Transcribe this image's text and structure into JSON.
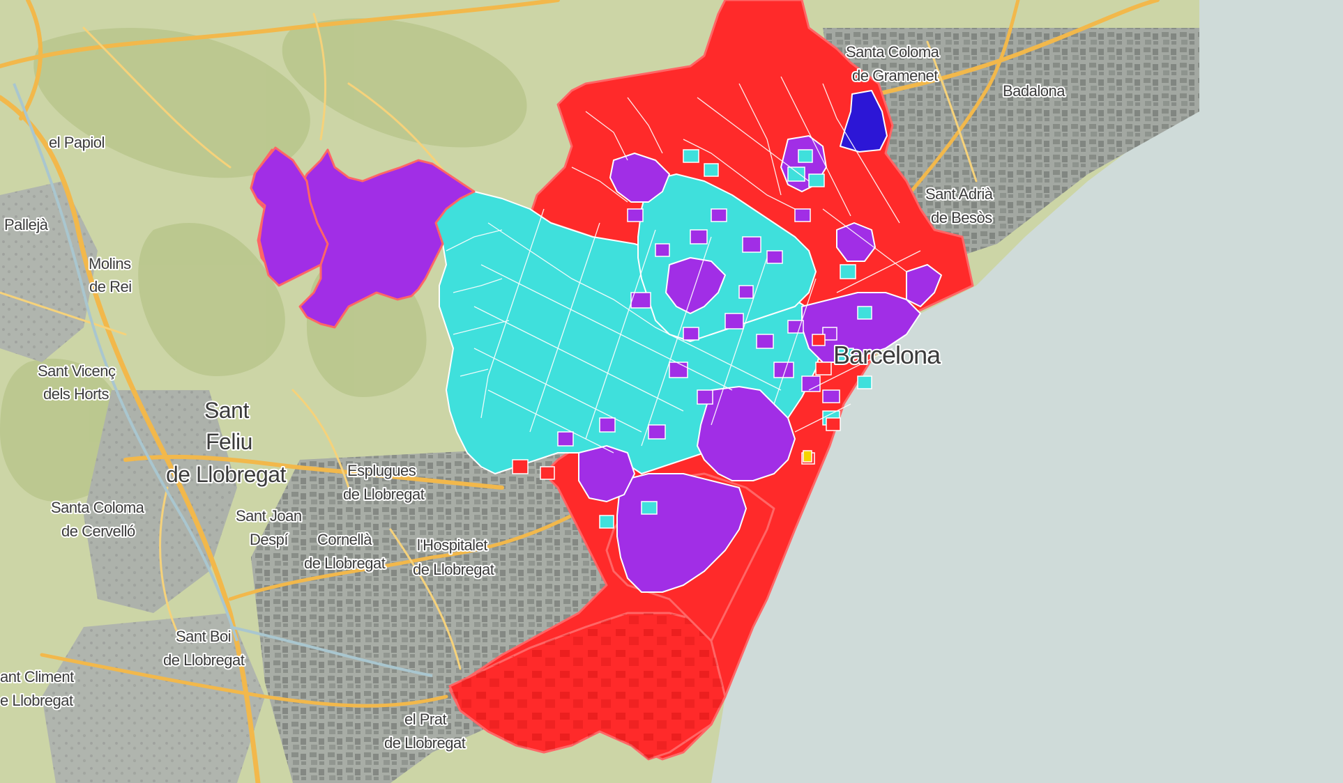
{
  "map": {
    "labels": {
      "santa_coloma_gramenet_1": "Santa Coloma",
      "santa_coloma_gramenet_2": "de Gramenet",
      "badalona": "Badalona",
      "el_papiol": "el Papiol",
      "pallejà": "Pallejà",
      "molins_1": "Molins",
      "molins_2": "de Rei",
      "sant_adria_1": "Sant Adrià",
      "sant_adria_2": "de Besòs",
      "barcelona": "Barcelona",
      "sant_vicenc_1": "Sant Vicenç",
      "sant_vicenc_2": "dels Horts",
      "sant_feliu_1": "Sant",
      "sant_feliu_2": "Feliu",
      "sant_feliu_3": "de Llobregat",
      "esplugues_1": "Esplugues",
      "esplugues_2": "de Llobregat",
      "santa_coloma_cervello_1": "Santa Coloma",
      "santa_coloma_cervello_2": "de Cervelló",
      "sant_joan_despi_1": "Sant Joan",
      "sant_joan_despi_2": "Despí",
      "cornella_1": "Cornellà",
      "cornella_2": "de Llobregat",
      "hospitalet_1": "l'Hospitalet",
      "hospitalet_2": "de Llobregat",
      "sant_boi_1": "Sant Boi",
      "sant_boi_2": "de Llobregat",
      "sant_climent_1": "ant Climent",
      "sant_climent_2": "e Llobregat",
      "el_prat_1": "el Prat",
      "el_prat_2": "de Llobregat"
    },
    "colors": {
      "sea": "#cfdbd9",
      "land": "#ccd5a6",
      "hills": "#b9c68c",
      "urban": "#9aa09a",
      "road_major": "#f2b84b",
      "road_minor": "#f6d27a",
      "party_red": "#ff2a2a",
      "party_turquoise": "#3fe0dc",
      "party_purple": "#a12ee6",
      "party_blue": "#2c16d6",
      "party_yellow": "#f5d400",
      "sector_border": "#ffffff",
      "municipality_border": "#ff6666"
    }
  }
}
